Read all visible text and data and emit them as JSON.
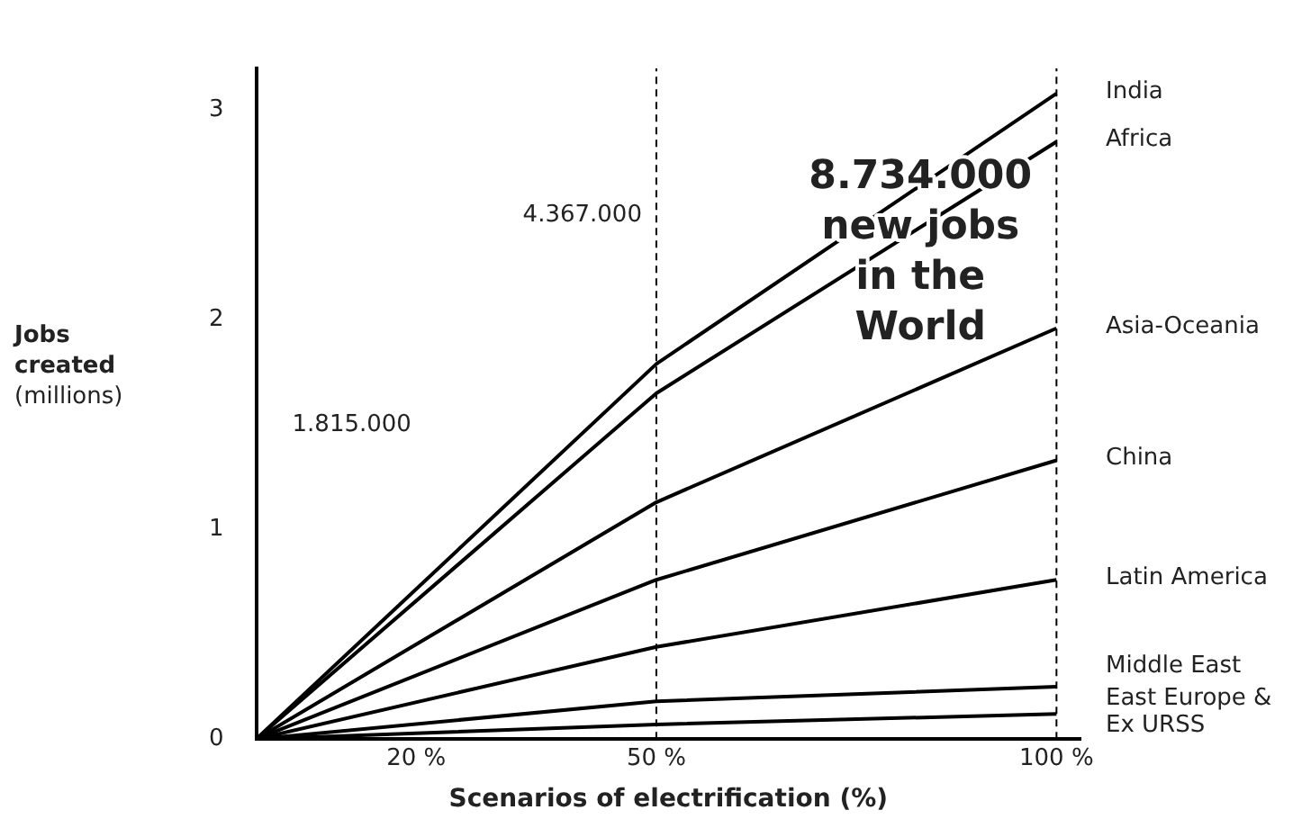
{
  "chart_data": {
    "type": "line",
    "xlabel": "Scenarios of electrification (%)",
    "ylabel": "Jobs created (millions)",
    "x": [
      0,
      50,
      100
    ],
    "series": [
      {
        "name": "India",
        "color": "#000000",
        "values": [
          0,
          1.79,
          3.08
        ]
      },
      {
        "name": "Africa",
        "color": "#000000",
        "values": [
          0,
          1.65,
          2.85
        ]
      },
      {
        "name": "Asia-Oceania",
        "color": "#000000",
        "values": [
          0,
          1.13,
          1.96
        ]
      },
      {
        "name": "China",
        "color": "#000000",
        "values": [
          0,
          0.76,
          1.33
        ]
      },
      {
        "name": "Latin America",
        "color": "#000000",
        "values": [
          0,
          0.44,
          0.76
        ]
      },
      {
        "name": "Middle East",
        "color": "#000000",
        "values": [
          0,
          0.18,
          0.25
        ]
      },
      {
        "name": "East Europe & Ex URSS",
        "color": "#000000",
        "values": [
          0,
          0.07,
          0.12
        ]
      }
    ],
    "xlim": [
      0,
      103
    ],
    "xticks": [
      {
        "value": 20,
        "label": "20 %"
      },
      {
        "value": 50,
        "label": "50 %"
      },
      {
        "value": 100,
        "label": "100 %"
      }
    ],
    "ylim": [
      0,
      3.2
    ],
    "yticks": [
      0,
      1,
      2,
      3
    ],
    "ref_lines": [
      {
        "axis": "x",
        "value": 50,
        "line_style": "dashed",
        "color": "#000000"
      },
      {
        "axis": "x",
        "value": 100,
        "line_style": "dashed",
        "color": "#000000"
      }
    ],
    "annotations": [
      "1.815.000",
      "8.734.000 new jobs in the World",
      {
        "text": "4.367.000",
        "x": 50,
        "y": 2.5
      }
    ],
    "grid": false,
    "legend": false,
    "marker": "none",
    "line_style": "solid"
  }
}
